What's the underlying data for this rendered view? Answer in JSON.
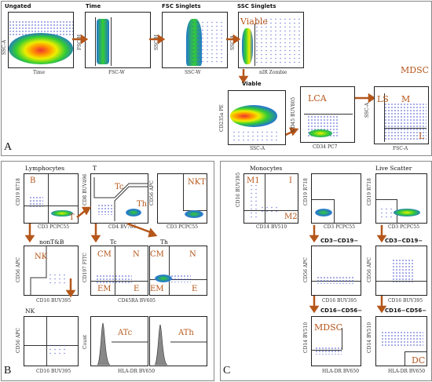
{
  "panelA": {
    "letter": "A",
    "plots": {
      "ungated": {
        "title": "Ungated",
        "ylabel": "SSC-A",
        "xlabel": "Time"
      },
      "time": {
        "title": "Time",
        "ylabel": "FSC-H",
        "xlabel": "FSC-W"
      },
      "fsc": {
        "title": "FSC Singlets",
        "ylabel": "SSC-H",
        "xlabel": "SSC-W"
      },
      "ssc": {
        "title": "SSC Singlets",
        "ylabel": "SSC-A",
        "xlabel": "nIR Zombie",
        "gate": "Viable"
      },
      "viable": {
        "title": "Viable",
        "ylabel": "CD235a PE",
        "xlabel": "SSC-A"
      },
      "lca": {
        "title": "",
        "ylabel": "CD45 BUV805",
        "xlabel": "CD34 PC7",
        "gate": "LCA"
      },
      "mdscA": {
        "title": "",
        "ylabel": "SSC-A",
        "xlabel": "FSC-A",
        "gates": [
          "LS",
          "M",
          "L"
        ]
      }
    },
    "mdsc_label": "MDSC"
  },
  "panelB": {
    "letter": "B",
    "plots": {
      "lymph": {
        "title": "Lymphocytes",
        "ylabel": "CD19 R718",
        "xlabel": "CD3 PCPC55",
        "gates": [
          "B",
          "T"
        ]
      },
      "t": {
        "title": "T",
        "ylabel": "CD8 BUV496",
        "xlabel": "CD4 BV786",
        "gates": [
          "Tc",
          "Th"
        ]
      },
      "nkt": {
        "title": "",
        "ylabel": "CD56 APC",
        "xlabel": "CD3 PCPC55",
        "gate": "NKT"
      },
      "nontb": {
        "title": "nonT&B",
        "ylabel": "CD56 APC",
        "xlabel": "CD16 BUV395",
        "gate": "NK"
      },
      "tc": {
        "title": "Tc",
        "ylabel": "CD197 FITC",
        "xlabel": "CD45RA BV605",
        "gates": [
          "CM",
          "N",
          "EM",
          "E"
        ]
      },
      "th": {
        "title": "Th",
        "ylabel": "",
        "xlabel": "",
        "gates": [
          "CM",
          "N",
          "EM",
          "E"
        ]
      },
      "nk": {
        "title": "NK",
        "ylabel": "CD56 APC",
        "xlabel": "CD16 BUV395"
      },
      "atc": {
        "title": "",
        "ylabel": "Count",
        "xlabel": "HLA-DR BV650",
        "gate": "ATc"
      },
      "ath": {
        "title": "",
        "ylabel": "",
        "xlabel": "",
        "gate": "ATh"
      }
    }
  },
  "panelC": {
    "letter": "C",
    "plots": {
      "mono": {
        "title": "Monocytes",
        "ylabel": "CD16 BUV395",
        "xlabel": "CD14 BV510",
        "gates": [
          "M1",
          "I",
          "M2"
        ]
      },
      "mono2": {
        "title": "",
        "ylabel": "CD19 R718",
        "xlabel": "CD3 PCPC55"
      },
      "live": {
        "title": "Live Scatter",
        "ylabel": "CD19 R718",
        "xlabel": "CD3 PCPC55"
      },
      "cd3a": {
        "title": "CD3−CD19−",
        "ylabel": "CD56 APC",
        "xlabel": "CD16 BUV395"
      },
      "cd3b": {
        "title": "CD3−CD19−",
        "ylabel": "CD56 APC",
        "xlabel": "CD16 BUV395"
      },
      "cd16a": {
        "title": "CD16−CD56−",
        "ylabel": "CD14 BV510",
        "xlabel": "HLA-DR BV650",
        "gate": "MDSC"
      },
      "cd16b": {
        "title": "CD16−CD56−",
        "ylabel": "CD14 BV510",
        "xlabel": "HLA-DR BV650",
        "gate": "DC"
      }
    }
  },
  "colors": {
    "gate": "#b5561a",
    "arrow": "#b5561a",
    "dots": "#3a49c8"
  }
}
